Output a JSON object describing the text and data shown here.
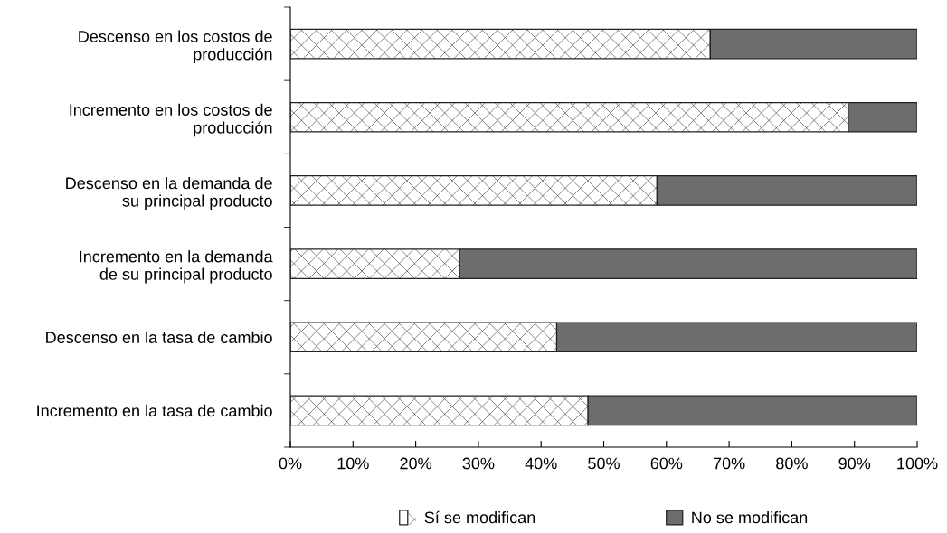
{
  "chart_data": {
    "type": "bar",
    "orientation": "horizontal",
    "stacked": true,
    "categories": [
      "Descenso en los costos de\nproducción",
      "Incremento en los costos de\nproducción",
      "Descenso en la demanda de\nsu principal producto",
      "Incremento en la demanda\nde su principal producto",
      "Descenso en la tasa de cambio",
      "Incremento en la tasa de cambio"
    ],
    "series": [
      {
        "name": "Sí se modifican",
        "color": "#ffffff",
        "values": [
          67,
          89,
          58.5,
          27,
          42.5,
          47.5
        ]
      },
      {
        "name": "No se modifican",
        "color": "#6d6d6d",
        "values": [
          33,
          11,
          41.5,
          73,
          57.5,
          52.5
        ]
      }
    ],
    "xlim": [
      0,
      100
    ],
    "xticks": [
      {
        "value": 0,
        "label": "0%"
      },
      {
        "value": 10,
        "label": "10%"
      },
      {
        "value": 20,
        "label": "20%"
      },
      {
        "value": 30,
        "label": "30%"
      },
      {
        "value": 40,
        "label": "40%"
      },
      {
        "value": 50,
        "label": "50%"
      },
      {
        "value": 60,
        "label": "60%"
      },
      {
        "value": 70,
        "label": "70%"
      },
      {
        "value": 80,
        "label": "80%"
      },
      {
        "value": 90,
        "label": "90%"
      },
      {
        "value": 100,
        "label": "100%"
      }
    ],
    "grid": false,
    "legend": "bottom"
  }
}
